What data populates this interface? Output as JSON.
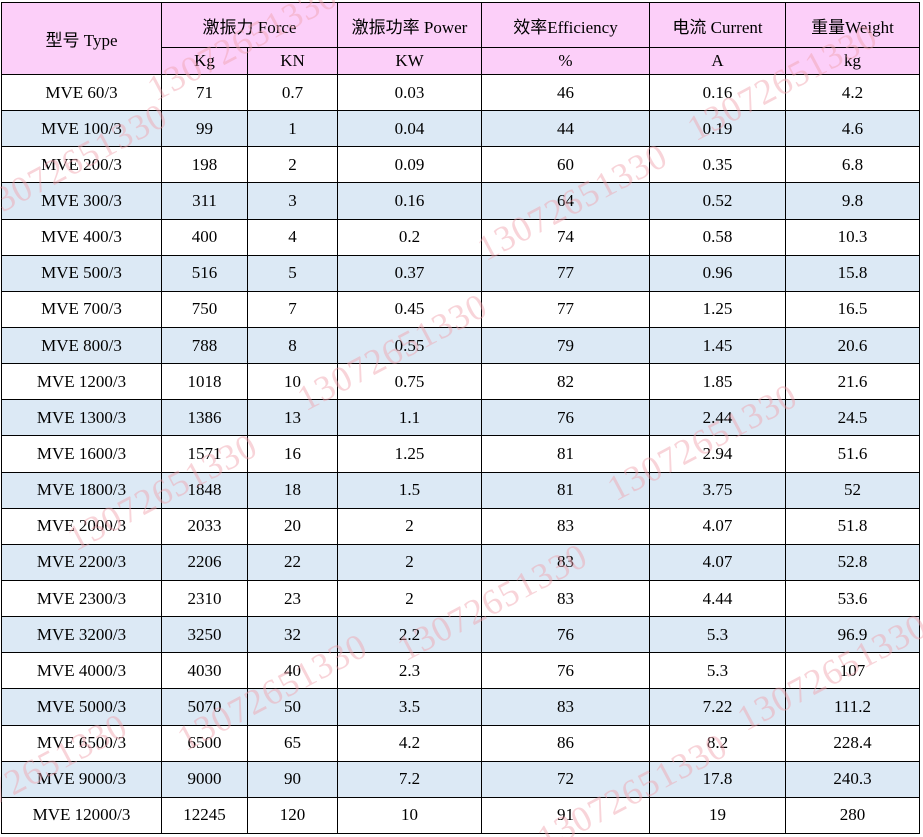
{
  "header": {
    "type_label": "型号 Type",
    "force_label": "激振力 Force",
    "power_label": "激振功率 Power",
    "efficiency_label": "效率Efficiency",
    "current_label": "电流 Current",
    "weight_label": "重量Weight",
    "units": {
      "kg": "Kg",
      "kn": "KN",
      "kw": "KW",
      "percent": "%",
      "amp": "A",
      "weight": "kg"
    }
  },
  "rows": [
    [
      "MVE 60/3",
      "71",
      "0.7",
      "0.03",
      "46",
      "0.16",
      "4.2"
    ],
    [
      "MVE 100/3",
      "99",
      "1",
      "0.04",
      "44",
      "0.19",
      "4.6"
    ],
    [
      "MVE 200/3",
      "198",
      "2",
      "0.09",
      "60",
      "0.35",
      "6.8"
    ],
    [
      "MVE 300/3",
      "311",
      "3",
      "0.16",
      "64",
      "0.52",
      "9.8"
    ],
    [
      "MVE 400/3",
      "400",
      "4",
      "0.2",
      "74",
      "0.58",
      "10.3"
    ],
    [
      "MVE 500/3",
      "516",
      "5",
      "0.37",
      "77",
      "0.96",
      "15.8"
    ],
    [
      "MVE 700/3",
      "750",
      "7",
      "0.45",
      "77",
      "1.25",
      "16.5"
    ],
    [
      "MVE 800/3",
      "788",
      "8",
      "0.55",
      "79",
      "1.45",
      "20.6"
    ],
    [
      "MVE 1200/3",
      "1018",
      "10",
      "0.75",
      "82",
      "1.85",
      "21.6"
    ],
    [
      "MVE 1300/3",
      "1386",
      "13",
      "1.1",
      "76",
      "2.44",
      "24.5"
    ],
    [
      "MVE 1600/3",
      "1571",
      "16",
      "1.25",
      "81",
      "2.94",
      "51.6"
    ],
    [
      "MVE 1800/3",
      "1848",
      "18",
      "1.5",
      "81",
      "3.75",
      "52"
    ],
    [
      "MVE 2000/3",
      "2033",
      "20",
      "2",
      "83",
      "4.07",
      "51.8"
    ],
    [
      "MVE 2200/3",
      "2206",
      "22",
      "2",
      "83",
      "4.07",
      "52.8"
    ],
    [
      "MVE 2300/3",
      "2310",
      "23",
      "2",
      "83",
      "4.44",
      "53.6"
    ],
    [
      "MVE 3200/3",
      "3250",
      "32",
      "2.2",
      "76",
      "5.3",
      "96.9"
    ],
    [
      "MVE 4000/3",
      "4030",
      "40",
      "2.3",
      "76",
      "5.3",
      "107"
    ],
    [
      "MVE 5000/3",
      "5070",
      "50",
      "3.5",
      "83",
      "7.22",
      "111.2"
    ],
    [
      "MVE 6500/3",
      "6500",
      "65",
      "4.2",
      "86",
      "8.2",
      "228.4"
    ],
    [
      "MVE 9000/3",
      "9000",
      "90",
      "7.2",
      "72",
      "17.8",
      "240.3"
    ],
    [
      "MVE 12000/3",
      "12245",
      "120",
      "10",
      "91",
      "19",
      "280"
    ]
  ],
  "watermark_text": "13072651330",
  "colors": {
    "header_bg": "#fccff9",
    "row_alt_bg": "#dce9f5",
    "row_bg": "#ffffff",
    "border": "#000000"
  }
}
